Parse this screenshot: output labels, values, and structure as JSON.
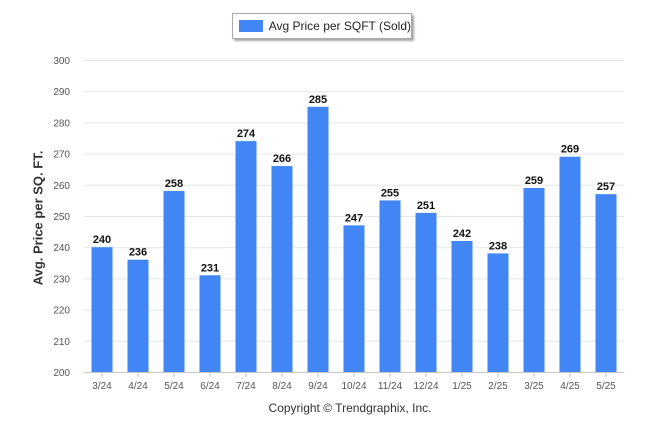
{
  "legend": {
    "label": "Avg Price per SQFT (Sold)"
  },
  "footer": {
    "copyright": "Copyright © Trendgraphix, Inc."
  },
  "chart_data": {
    "type": "bar",
    "categories": [
      "3/24",
      "4/24",
      "5/24",
      "6/24",
      "7/24",
      "8/24",
      "9/24",
      "10/24",
      "11/24",
      "12/24",
      "1/25",
      "2/25",
      "3/25",
      "4/25",
      "5/25"
    ],
    "series": [
      {
        "name": "Avg Price per SQFT (Sold)",
        "values": [
          240,
          236,
          258,
          231,
          274,
          266,
          285,
          247,
          255,
          251,
          242,
          238,
          259,
          269,
          257
        ]
      }
    ],
    "ylabel": "Avg. Price per SQ. FT.",
    "xlabel": "",
    "ylim": [
      200,
      300
    ],
    "yticks": [
      200,
      210,
      220,
      230,
      240,
      250,
      260,
      270,
      280,
      290,
      300
    ],
    "grid": true,
    "legend_position": "top-center",
    "data_labels": true,
    "colors": {
      "bar": "#4285f4",
      "grid": "#e6e6e6",
      "axis": "#c8c8c8",
      "text": "#333333"
    }
  }
}
